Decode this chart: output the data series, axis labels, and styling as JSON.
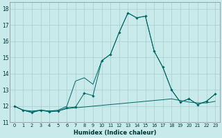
{
  "xlabel": "Humidex (Indice chaleur)",
  "background_color": "#c8eaea",
  "grid_color": "#aacccc",
  "line_color": "#006666",
  "xlim": [
    -0.5,
    23.5
  ],
  "ylim": [
    11.0,
    18.4
  ],
  "yticks": [
    11,
    12,
    13,
    14,
    15,
    16,
    17,
    18
  ],
  "xticks": [
    0,
    1,
    2,
    3,
    4,
    5,
    6,
    7,
    8,
    9,
    10,
    11,
    12,
    13,
    14,
    15,
    16,
    17,
    18,
    19,
    20,
    21,
    22,
    23
  ],
  "series_main_x": [
    0,
    1,
    2,
    3,
    4,
    5,
    6,
    7,
    8,
    9,
    10,
    11,
    12,
    13,
    14,
    15,
    16,
    17,
    18,
    19,
    20,
    21,
    22,
    23
  ],
  "series_main_y": [
    12.0,
    11.75,
    11.6,
    11.75,
    11.65,
    11.7,
    11.9,
    11.95,
    12.8,
    12.65,
    14.8,
    15.2,
    16.55,
    17.75,
    17.45,
    17.55,
    15.4,
    14.4,
    13.0,
    12.25,
    12.45,
    12.1,
    12.3,
    12.75
  ],
  "series_mid_x": [
    0,
    1,
    2,
    3,
    4,
    5,
    6,
    7,
    8,
    9,
    10,
    11,
    12,
    13,
    14,
    15,
    16,
    17,
    18,
    19,
    20,
    21,
    22,
    23
  ],
  "series_mid_y": [
    12.0,
    11.75,
    11.7,
    11.75,
    11.7,
    11.75,
    12.0,
    13.55,
    13.75,
    13.35,
    14.8,
    15.2,
    16.55,
    17.75,
    17.45,
    17.55,
    15.4,
    14.4,
    13.0,
    12.25,
    12.45,
    12.1,
    12.3,
    12.75
  ],
  "series_bot_x": [
    0,
    1,
    2,
    3,
    4,
    5,
    6,
    7,
    8,
    9,
    10,
    11,
    12,
    13,
    14,
    15,
    16,
    17,
    18,
    19,
    20,
    21,
    22,
    23
  ],
  "series_bot_y": [
    12.0,
    11.75,
    11.65,
    11.75,
    11.7,
    11.7,
    11.85,
    11.9,
    11.95,
    12.0,
    12.05,
    12.1,
    12.15,
    12.2,
    12.25,
    12.3,
    12.35,
    12.4,
    12.45,
    12.35,
    12.25,
    12.2,
    12.2,
    12.3
  ]
}
